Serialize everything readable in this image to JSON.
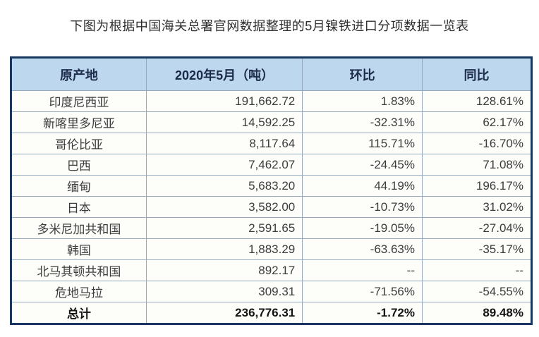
{
  "page_title": "下图为根据中国海关总署官网数据整理的5月镍铁进口分项数据一览表",
  "chart_data": {
    "type": "table",
    "title": "5月镍铁进口分项数据一览表",
    "columns": [
      "原产地",
      "2020年5月（吨）",
      "环比",
      "同比"
    ],
    "rows": [
      {
        "origin": "印度尼西亚",
        "volume": "191,662.72",
        "mom": "1.83%",
        "yoy": "128.61%"
      },
      {
        "origin": "新喀里多尼亚",
        "volume": "14,592.25",
        "mom": "-32.31%",
        "yoy": "62.17%"
      },
      {
        "origin": "哥伦比亚",
        "volume": "8,117.64",
        "mom": "115.71%",
        "yoy": "-16.70%"
      },
      {
        "origin": "巴西",
        "volume": "7,462.07",
        "mom": "-24.45%",
        "yoy": "71.08%"
      },
      {
        "origin": "缅甸",
        "volume": "5,683.20",
        "mom": "44.19%",
        "yoy": "196.17%"
      },
      {
        "origin": "日本",
        "volume": "3,582.00",
        "mom": "-10.73%",
        "yoy": "31.02%"
      },
      {
        "origin": "多米尼加共和国",
        "volume": "2,591.65",
        "mom": "-19.05%",
        "yoy": "-27.04%"
      },
      {
        "origin": "韩国",
        "volume": "1,883.29",
        "mom": "-63.63%",
        "yoy": "-35.17%"
      },
      {
        "origin": "北马其顿共和国",
        "volume": "892.17",
        "mom": "--",
        "yoy": "--"
      },
      {
        "origin": "危地马拉",
        "volume": "309.31",
        "mom": "-71.56%",
        "yoy": "-54.55%"
      }
    ],
    "total_row": {
      "origin": "总计",
      "volume": "236,776.31",
      "mom": "-1.72%",
      "yoy": "89.48%"
    }
  },
  "colors": {
    "outer_border": "#17375e",
    "inner_border": "#97aabd",
    "header_bg": "#bdd7ee",
    "header_text": "#1c2b4a",
    "body_text": "#3c3c3c",
    "cell_bg": "#fdfdfa"
  }
}
